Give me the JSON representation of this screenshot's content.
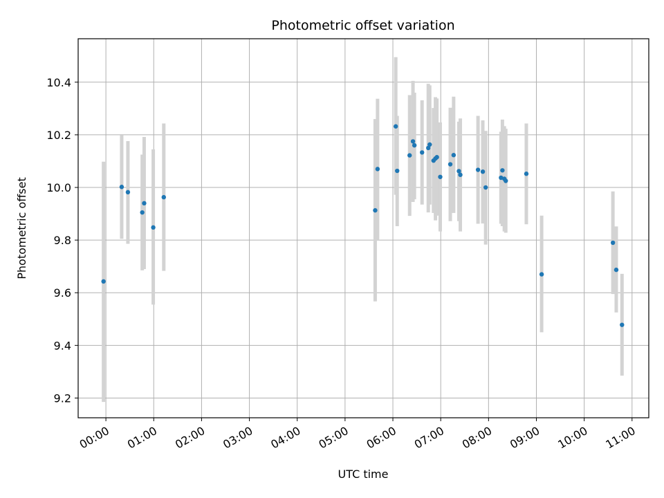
{
  "chart_data": {
    "type": "scatter",
    "title": "Photometric offset variation",
    "xlabel": "UTC time",
    "ylabel": "Photometric offset",
    "x_unit": "hours",
    "xlim": [
      -0.58,
      11.35
    ],
    "ylim": [
      9.125,
      10.565
    ],
    "x_ticks": [
      "00:00",
      "01:00",
      "02:00",
      "03:00",
      "04:00",
      "05:00",
      "06:00",
      "07:00",
      "08:00",
      "09:00",
      "10:00",
      "11:00"
    ],
    "y_ticks": [
      9.2,
      9.4,
      9.6,
      9.8,
      10.0,
      10.2,
      10.4
    ],
    "y_tick_labels": [
      "9.2",
      "9.4",
      "9.6",
      "9.8",
      "10.0",
      "10.2",
      "10.4"
    ],
    "grid": true,
    "point_color": "#1f77b4",
    "errorbar_color": "#d3d3d3",
    "series": [
      {
        "points": [
          {
            "x": -0.05,
            "y": 9.643,
            "lo": 9.185,
            "hi": 10.098
          },
          {
            "x": 0.33,
            "y": 10.002,
            "lo": 9.805,
            "hi": 10.198
          },
          {
            "x": 0.46,
            "y": 9.982,
            "lo": 9.786,
            "hi": 10.176
          },
          {
            "x": 0.76,
            "y": 9.905,
            "lo": 9.685,
            "hi": 10.125
          },
          {
            "x": 0.8,
            "y": 9.94,
            "lo": 9.69,
            "hi": 10.192
          },
          {
            "x": 0.99,
            "y": 9.848,
            "lo": 9.555,
            "hi": 10.145
          },
          {
            "x": 1.21,
            "y": 9.963,
            "lo": 9.683,
            "hi": 10.243
          },
          {
            "x": 5.63,
            "y": 9.913,
            "lo": 9.567,
            "hi": 10.26
          },
          {
            "x": 5.68,
            "y": 10.07,
            "lo": 9.8,
            "hi": 10.337
          },
          {
            "x": 6.06,
            "y": 10.232,
            "lo": 9.972,
            "hi": 10.495
          },
          {
            "x": 6.09,
            "y": 10.063,
            "lo": 9.853,
            "hi": 10.272
          },
          {
            "x": 6.35,
            "y": 10.122,
            "lo": 9.892,
            "hi": 10.351
          },
          {
            "x": 6.42,
            "y": 10.175,
            "lo": 9.945,
            "hi": 10.405
          },
          {
            "x": 6.45,
            "y": 10.16,
            "lo": 9.955,
            "hi": 10.36
          },
          {
            "x": 6.61,
            "y": 10.133,
            "lo": 9.935,
            "hi": 10.331
          },
          {
            "x": 6.74,
            "y": 10.15,
            "lo": 9.905,
            "hi": 10.394
          },
          {
            "x": 6.77,
            "y": 10.163,
            "lo": 9.935,
            "hi": 10.388
          },
          {
            "x": 6.85,
            "y": 10.102,
            "lo": 9.903,
            "hi": 10.302
          },
          {
            "x": 6.89,
            "y": 10.11,
            "lo": 9.875,
            "hi": 10.343
          },
          {
            "x": 6.92,
            "y": 10.115,
            "lo": 9.893,
            "hi": 10.338
          },
          {
            "x": 6.99,
            "y": 10.04,
            "lo": 9.833,
            "hi": 10.247
          },
          {
            "x": 7.2,
            "y": 10.088,
            "lo": 9.872,
            "hi": 10.303
          },
          {
            "x": 7.27,
            "y": 10.123,
            "lo": 9.903,
            "hi": 10.345
          },
          {
            "x": 7.38,
            "y": 10.062,
            "lo": 9.872,
            "hi": 10.25
          },
          {
            "x": 7.41,
            "y": 10.048,
            "lo": 9.833,
            "hi": 10.262
          },
          {
            "x": 7.78,
            "y": 10.067,
            "lo": 9.862,
            "hi": 10.272
          },
          {
            "x": 7.88,
            "y": 10.06,
            "lo": 9.863,
            "hi": 10.255
          },
          {
            "x": 7.94,
            "y": 10.0,
            "lo": 9.783,
            "hi": 10.215
          },
          {
            "x": 8.26,
            "y": 10.037,
            "lo": 9.862,
            "hi": 10.212
          },
          {
            "x": 8.29,
            "y": 10.065,
            "lo": 9.853,
            "hi": 10.258
          },
          {
            "x": 8.33,
            "y": 10.033,
            "lo": 9.833,
            "hi": 10.233
          },
          {
            "x": 8.36,
            "y": 10.025,
            "lo": 9.828,
            "hi": 10.223
          },
          {
            "x": 8.79,
            "y": 10.052,
            "lo": 9.86,
            "hi": 10.243
          },
          {
            "x": 9.11,
            "y": 9.67,
            "lo": 9.45,
            "hi": 9.893
          },
          {
            "x": 10.6,
            "y": 9.79,
            "lo": 9.595,
            "hi": 9.985
          },
          {
            "x": 10.67,
            "y": 9.687,
            "lo": 9.525,
            "hi": 9.852
          },
          {
            "x": 10.79,
            "y": 9.478,
            "lo": 9.285,
            "hi": 9.672
          }
        ]
      }
    ]
  }
}
